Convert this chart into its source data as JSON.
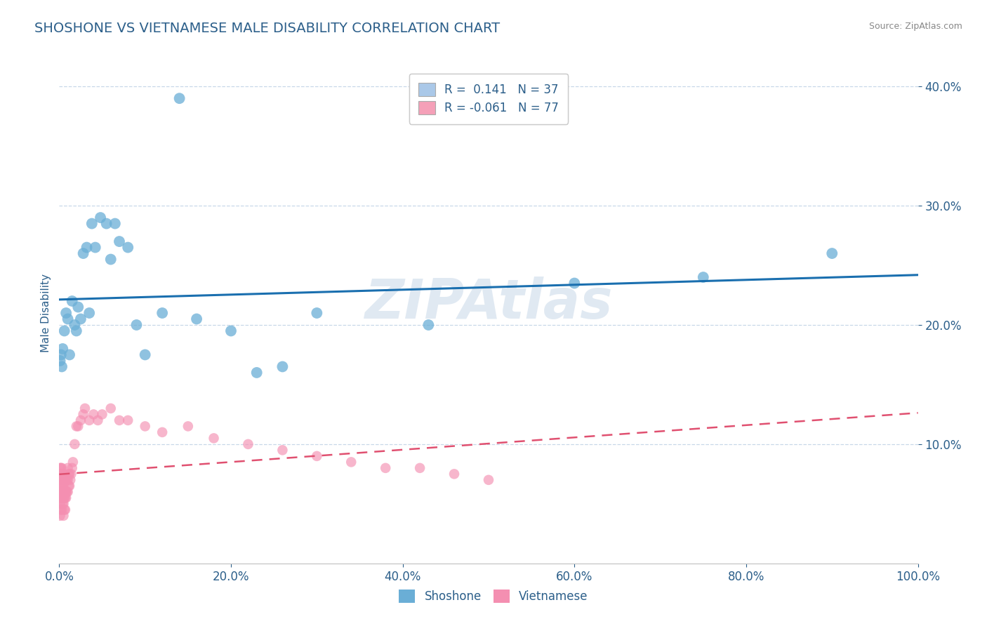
{
  "title": "SHOSHONE VS VIETNAMESE MALE DISABILITY CORRELATION CHART",
  "source": "Source: ZipAtlas.com",
  "ylabel": "Male Disability",
  "watermark": "ZIPAtlas",
  "legend_entries": [
    {
      "label": "Shoshone",
      "R": "0.141",
      "N": "37",
      "color": "#aac8e8"
    },
    {
      "label": "Vietnamese",
      "R": "-0.061",
      "N": "77",
      "color": "#f5a0b8"
    }
  ],
  "shoshone_x": [
    0.001,
    0.002,
    0.003,
    0.004,
    0.006,
    0.008,
    0.01,
    0.012,
    0.015,
    0.018,
    0.02,
    0.022,
    0.025,
    0.028,
    0.032,
    0.035,
    0.038,
    0.042,
    0.048,
    0.055,
    0.06,
    0.065,
    0.07,
    0.08,
    0.09,
    0.1,
    0.12,
    0.14,
    0.16,
    0.2,
    0.23,
    0.26,
    0.3,
    0.43,
    0.6,
    0.75,
    0.9
  ],
  "shoshone_y": [
    0.17,
    0.175,
    0.165,
    0.18,
    0.195,
    0.21,
    0.205,
    0.175,
    0.22,
    0.2,
    0.195,
    0.215,
    0.205,
    0.26,
    0.265,
    0.21,
    0.285,
    0.265,
    0.29,
    0.285,
    0.255,
    0.285,
    0.27,
    0.265,
    0.2,
    0.175,
    0.21,
    0.39,
    0.205,
    0.195,
    0.16,
    0.165,
    0.21,
    0.2,
    0.235,
    0.24,
    0.26
  ],
  "vietnamese_x": [
    0.001,
    0.001,
    0.001,
    0.001,
    0.001,
    0.002,
    0.002,
    0.002,
    0.002,
    0.002,
    0.002,
    0.003,
    0.003,
    0.003,
    0.003,
    0.003,
    0.003,
    0.004,
    0.004,
    0.004,
    0.004,
    0.004,
    0.005,
    0.005,
    0.005,
    0.005,
    0.005,
    0.005,
    0.006,
    0.006,
    0.006,
    0.006,
    0.007,
    0.007,
    0.007,
    0.007,
    0.008,
    0.008,
    0.008,
    0.009,
    0.009,
    0.01,
    0.01,
    0.01,
    0.011,
    0.011,
    0.012,
    0.012,
    0.013,
    0.014,
    0.015,
    0.016,
    0.018,
    0.02,
    0.022,
    0.025,
    0.028,
    0.03,
    0.035,
    0.04,
    0.045,
    0.05,
    0.06,
    0.07,
    0.08,
    0.1,
    0.12,
    0.15,
    0.18,
    0.22,
    0.26,
    0.3,
    0.34,
    0.38,
    0.42,
    0.46,
    0.5
  ],
  "vietnamese_y": [
    0.04,
    0.05,
    0.06,
    0.07,
    0.08,
    0.045,
    0.055,
    0.065,
    0.07,
    0.075,
    0.08,
    0.045,
    0.055,
    0.06,
    0.065,
    0.07,
    0.08,
    0.05,
    0.055,
    0.06,
    0.065,
    0.075,
    0.04,
    0.05,
    0.055,
    0.06,
    0.065,
    0.075,
    0.045,
    0.055,
    0.06,
    0.07,
    0.045,
    0.055,
    0.06,
    0.07,
    0.055,
    0.06,
    0.07,
    0.06,
    0.07,
    0.06,
    0.07,
    0.08,
    0.065,
    0.075,
    0.065,
    0.075,
    0.07,
    0.075,
    0.08,
    0.085,
    0.1,
    0.115,
    0.115,
    0.12,
    0.125,
    0.13,
    0.12,
    0.125,
    0.12,
    0.125,
    0.13,
    0.12,
    0.12,
    0.115,
    0.11,
    0.115,
    0.105,
    0.1,
    0.095,
    0.09,
    0.085,
    0.08,
    0.08,
    0.075,
    0.07
  ],
  "xlim": [
    0.0,
    1.0
  ],
  "ylim": [
    0.0,
    0.42
  ],
  "shoshone_color": "#6aaed6",
  "vietnamese_color": "#f48fb1",
  "shoshone_line_color": "#1a6faf",
  "vietnamese_line_color": "#e05070",
  "background_color": "#ffffff",
  "grid_color": "#c8d8e8",
  "title_color": "#2c5f8a",
  "axis_label_color": "#2c5f8a",
  "tick_color": "#2c5f8a",
  "source_color": "#888888",
  "yticks": [
    0.1,
    0.2,
    0.3,
    0.4
  ],
  "xticks": [
    0.0,
    0.2,
    0.4,
    0.6,
    0.8,
    1.0
  ],
  "xtick_labels": [
    "0.0%",
    "20.0%",
    "40.0%",
    "60.0%",
    "80.0%",
    "100.0%"
  ],
  "ytick_labels": [
    "10.0%",
    "20.0%",
    "30.0%",
    "40.0%"
  ]
}
